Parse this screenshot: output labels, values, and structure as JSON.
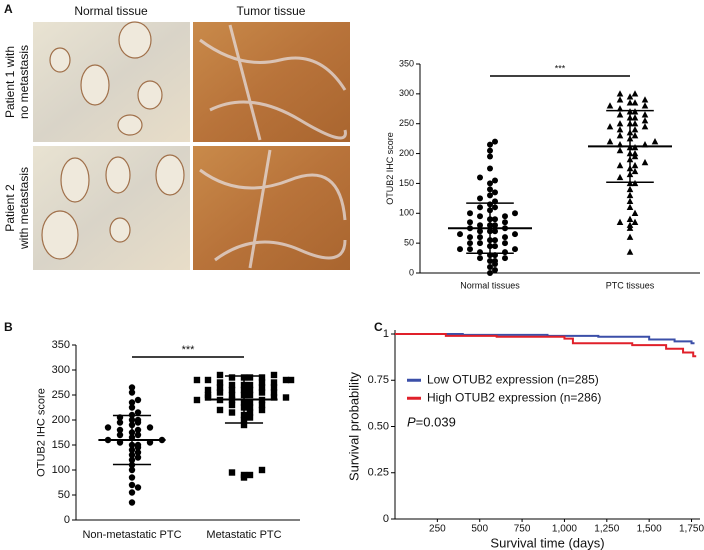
{
  "figure": {
    "panel_labels": [
      "A",
      "B",
      "C"
    ],
    "images": {
      "columns": [
        "Normal tissue",
        "Tumor tissue"
      ],
      "rows": [
        [
          "Patient 1 with",
          "no metastasis"
        ],
        [
          "Patient 2",
          "with metastasis"
        ]
      ]
    }
  },
  "chart_data": [
    {
      "type": "dot",
      "ylabel": "OTUB2 IHC score",
      "annotation": "***",
      "categories": [
        "Normal tissues",
        "PTC tissues"
      ],
      "ylim": [
        0,
        350
      ],
      "yticks": [
        0,
        50,
        100,
        150,
        200,
        250,
        300,
        350
      ],
      "groups": [
        {
          "marker": "circle",
          "color": "#000000",
          "mean": 75,
          "error": 42,
          "values": [
            0,
            5,
            10,
            15,
            20,
            20,
            25,
            25,
            30,
            30,
            35,
            35,
            40,
            40,
            40,
            45,
            45,
            50,
            50,
            50,
            55,
            55,
            60,
            60,
            60,
            65,
            65,
            70,
            70,
            70,
            75,
            75,
            80,
            80,
            80,
            85,
            85,
            90,
            90,
            95,
            95,
            100,
            100,
            105,
            110,
            110,
            115,
            120,
            125,
            130,
            135,
            140,
            150,
            155,
            160,
            175,
            195,
            205,
            215,
            220
          ]
        },
        {
          "marker": "triangle",
          "color": "#000000",
          "mean": 212,
          "error": 60,
          "values": [
            35,
            60,
            75,
            80,
            85,
            85,
            90,
            100,
            110,
            120,
            130,
            140,
            150,
            150,
            160,
            165,
            170,
            175,
            180,
            180,
            185,
            190,
            195,
            200,
            200,
            205,
            210,
            210,
            215,
            215,
            220,
            220,
            225,
            230,
            230,
            235,
            240,
            240,
            245,
            245,
            250,
            250,
            250,
            255,
            260,
            260,
            265,
            265,
            270,
            270,
            275,
            280,
            280,
            285,
            285,
            290,
            290,
            295,
            300,
            300
          ]
        }
      ]
    },
    {
      "type": "dot",
      "ylabel": "OTUB2 IHC score",
      "annotation": "***",
      "categories": [
        "Non-metastatic PTC",
        "Metastatic PTC"
      ],
      "ylim": [
        0,
        350
      ],
      "yticks": [
        0,
        50,
        100,
        150,
        200,
        250,
        300,
        350
      ],
      "groups": [
        {
          "marker": "circle",
          "color": "#000000",
          "mean": 160,
          "error": 49,
          "values": [
            35,
            55,
            65,
            70,
            85,
            100,
            110,
            120,
            125,
            130,
            135,
            140,
            145,
            150,
            150,
            155,
            155,
            160,
            160,
            165,
            170,
            170,
            175,
            180,
            180,
            185,
            185,
            190,
            195,
            195,
            200,
            200,
            205,
            210,
            215,
            225,
            235,
            240,
            255,
            265
          ]
        },
        {
          "marker": "square",
          "color": "#000000",
          "mean": 241,
          "error": 47,
          "values": [
            85,
            90,
            90,
            95,
            100,
            190,
            200,
            205,
            210,
            215,
            215,
            220,
            220,
            225,
            225,
            230,
            230,
            235,
            235,
            240,
            240,
            240,
            245,
            245,
            245,
            250,
            250,
            250,
            255,
            255,
            255,
            260,
            260,
            260,
            265,
            265,
            265,
            270,
            270,
            270,
            275,
            275,
            275,
            280,
            280,
            280,
            280,
            285,
            285,
            285,
            285,
            290,
            290,
            250,
            240,
            260
          ]
        }
      ]
    },
    {
      "type": "step",
      "xlabel": "Survival time (days)",
      "ylabel": "Survival probability",
      "annotation": {
        "italic": "P",
        "text": "=0.039"
      },
      "legend": "center-left",
      "xlim": [
        0,
        1800
      ],
      "xticks": [
        250,
        500,
        750,
        {
          "value": 1000,
          "label": "1,000"
        },
        {
          "value": 1250,
          "label": "1,250"
        },
        {
          "value": 1500,
          "label": "1,500"
        },
        {
          "value": 1750,
          "label": "1,750"
        }
      ],
      "ylim": [
        0,
        1
      ],
      "yticks": [
        0,
        0.25,
        {
          "value": 0.5,
          "label": "0.50"
        },
        0.75,
        1
      ],
      "series": [
        {
          "name": "Low OTUB2 expression (n=285)",
          "color": "#3b4fa8",
          "x": [
            0,
            400,
            900,
            1200,
            1500,
            1650,
            1750
          ],
          "values": [
            1,
            0.995,
            0.99,
            0.985,
            0.97,
            0.96,
            0.95
          ]
        },
        {
          "name": "High OTUB2 expression (n=286)",
          "color": "#e0202a",
          "x": [
            0,
            300,
            600,
            1000,
            1050,
            1400,
            1600,
            1700,
            1760
          ],
          "values": [
            1,
            0.99,
            0.985,
            0.975,
            0.95,
            0.94,
            0.92,
            0.9,
            0.88
          ]
        }
      ]
    }
  ]
}
